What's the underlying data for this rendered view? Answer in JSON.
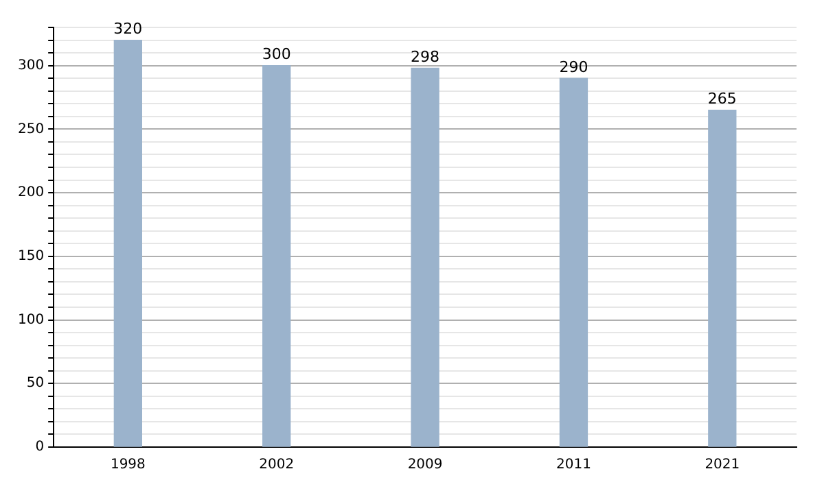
{
  "chart_data": {
    "type": "bar",
    "categories": [
      "1998",
      "2002",
      "2009",
      "2011",
      "2021"
    ],
    "values": [
      320,
      300,
      298,
      290,
      265
    ],
    "color": "#9bb3cc",
    "ylim": [
      0,
      330
    ],
    "yticks": [
      0,
      {
        "value": 10,
        "label": null
      },
      {
        "value": 20,
        "label": null
      },
      {
        "value": 30,
        "label": null
      },
      {
        "value": 40,
        "label": null
      },
      50,
      {
        "value": 60,
        "label": null
      },
      {
        "value": 70,
        "label": null
      },
      {
        "value": 80,
        "label": null
      },
      {
        "value": 90,
        "label": null
      },
      100,
      {
        "value": 110,
        "label": null
      },
      {
        "value": 120,
        "label": null
      },
      {
        "value": 130,
        "label": null
      },
      {
        "value": 140,
        "label": null
      },
      150,
      {
        "value": 160,
        "label": null
      },
      {
        "value": 170,
        "label": null
      },
      {
        "value": 180,
        "label": null
      },
      {
        "value": 190,
        "label": null
      },
      200,
      {
        "value": 210,
        "label": null
      },
      {
        "value": 220,
        "label": null
      },
      {
        "value": 230,
        "label": null
      },
      {
        "value": 240,
        "label": null
      },
      250,
      {
        "value": 260,
        "label": null
      },
      {
        "value": 270,
        "label": null
      },
      {
        "value": 280,
        "label": null
      },
      {
        "value": 290,
        "label": null
      },
      300,
      {
        "value": 310,
        "label": null
      },
      {
        "value": 320,
        "label": null
      },
      {
        "value": 330,
        "label": null
      }
    ],
    "grid": "y",
    "data_labels": true
  }
}
